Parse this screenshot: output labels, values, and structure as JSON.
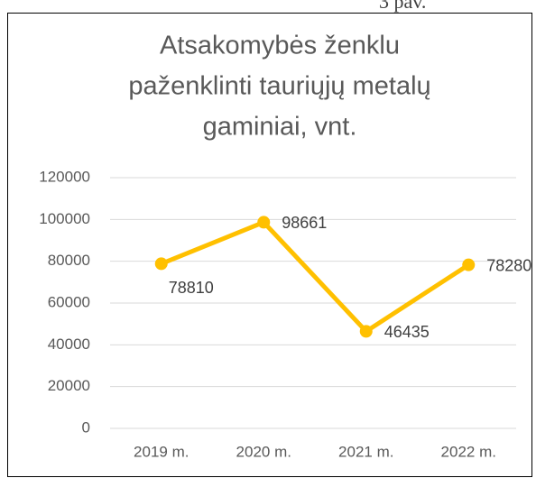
{
  "caption": "3 pav.",
  "chart_data": {
    "type": "line",
    "title": [
      "Atsakomybės ženklu",
      "paženklinti tauriųjų metalų",
      "gaminiai, vnt."
    ],
    "categories": [
      "2019 m.",
      "2020 m.",
      "2021 m.",
      "2022 m."
    ],
    "series": [
      {
        "color": "#FFC000",
        "values": [
          78810,
          98661,
          46435,
          78280
        ]
      }
    ],
    "ylim": [
      0,
      120000
    ],
    "yticks": [
      0,
      20000,
      40000,
      60000,
      80000,
      100000,
      120000
    ],
    "grid": true
  }
}
